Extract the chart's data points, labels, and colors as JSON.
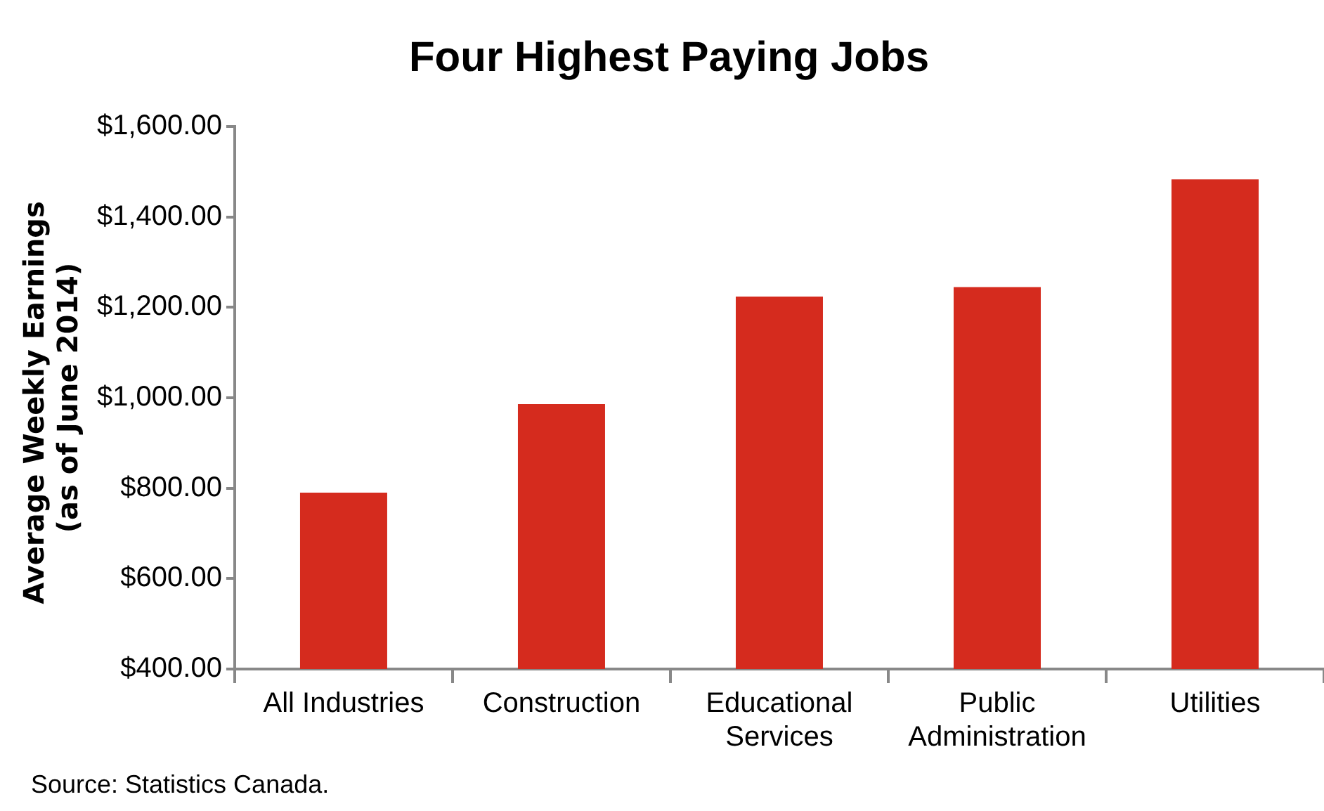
{
  "chart_data": {
    "type": "bar",
    "title": "Four Highest Paying Jobs",
    "ylabel": "Average Weekly Earnings  (as of June 2014)",
    "categories": [
      "All Industries",
      "Construction",
      "Educational Services",
      "Public Administration",
      "Utilities"
    ],
    "values": [
      790,
      986,
      1224,
      1245,
      1483
    ],
    "color": "#d52b1e",
    "ylim": [
      400,
      1600
    ],
    "yticks": [
      {
        "value": 400,
        "label": "$400.00"
      },
      {
        "value": 600,
        "label": "$600.00"
      },
      {
        "value": 800,
        "label": "$800.00"
      },
      {
        "value": 1000,
        "label": "$1,000.00"
      },
      {
        "value": 1200,
        "label": "$1,200.00"
      },
      {
        "value": 1400,
        "label": "$1,400.00"
      },
      {
        "value": 1600,
        "label": "$1,600.00"
      }
    ],
    "grid": false,
    "legend": false,
    "annotations": [
      "Source: Statistics Canada."
    ]
  }
}
